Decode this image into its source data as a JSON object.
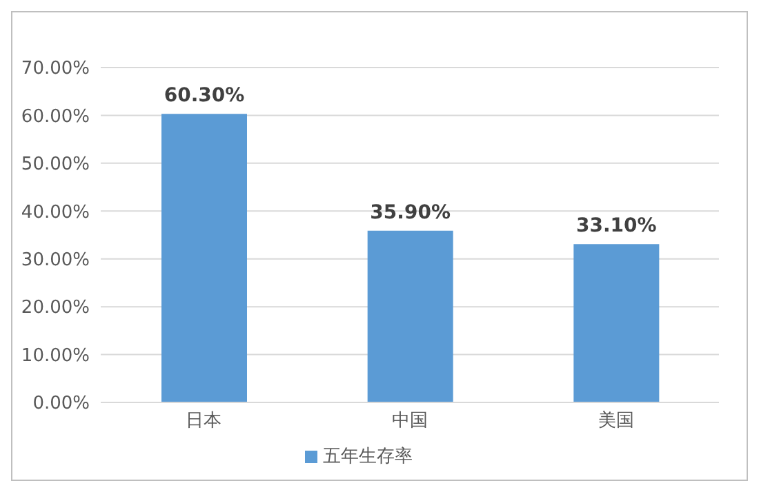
{
  "chart_data": {
    "type": "bar",
    "categories": [
      "日本",
      "中国",
      "美国"
    ],
    "series": [
      {
        "name": "五年生存率",
        "color": "#5b9bd5",
        "values": [
          60.3,
          35.9,
          33.1
        ],
        "value_labels": [
          "60.30%",
          "35.90%",
          "33.10%"
        ]
      }
    ],
    "ylim": [
      0,
      70
    ],
    "yticks": [
      {
        "value": 0,
        "label": "0.00%"
      },
      {
        "value": 10,
        "label": "10.00%"
      },
      {
        "value": 20,
        "label": "20.00%"
      },
      {
        "value": 30,
        "label": "30.00%"
      },
      {
        "value": 40,
        "label": "40.00%"
      },
      {
        "value": 50,
        "label": "50.00%"
      },
      {
        "value": 60,
        "label": "60.00%"
      },
      {
        "value": 70,
        "label": "70.00%"
      }
    ],
    "grid": "y",
    "legend": "bottom"
  }
}
